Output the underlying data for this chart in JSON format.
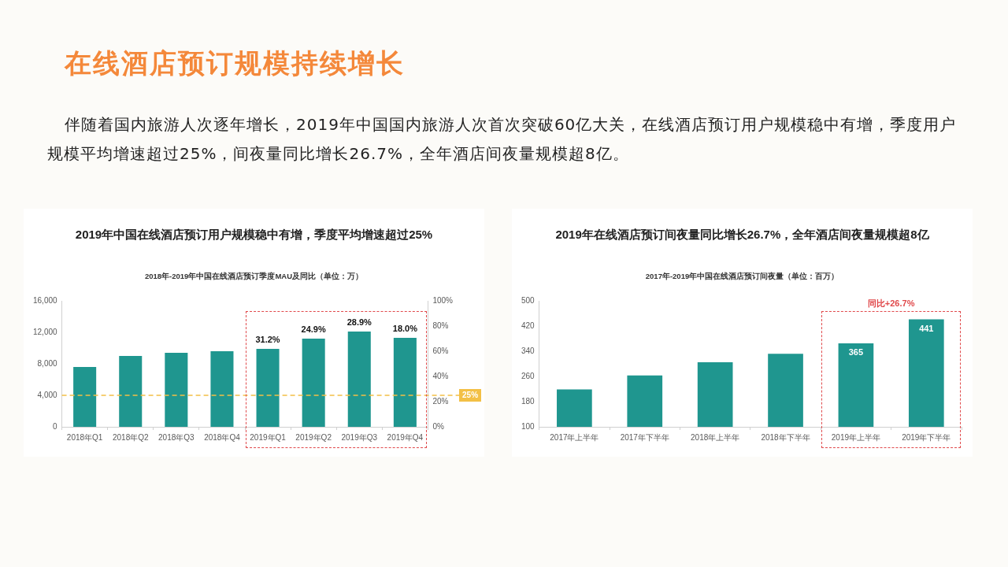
{
  "chart_data": [
    {
      "type": "other",
      "title": "在线酒店预订规模持续增长",
      "annotations": [
        "伴随着国内旅游人次逐年增长，2019年中国国内旅游人次首次突破60亿大关，在线酒店预订用户规模稳中有增，季度用户规模平均增速超过25%，间夜量同比增长26.7%，全年酒店间夜量规模超8亿。"
      ]
    },
    {
      "type": "bar",
      "title": "2019年中国在线酒店预订用户规模稳中有增，季度平均增速超过25%",
      "subtitle": "2018年-2019年中国在线酒店预订季度MAU及同比（单位：万）",
      "categories": [
        "2018年Q1",
        "2018年Q2",
        "2018年Q3",
        "2018年Q4",
        "2019年Q1",
        "2019年Q2",
        "2019年Q3",
        "2019年Q4"
      ],
      "values": [
        7600,
        9000,
        9400,
        9600,
        9900,
        11200,
        12100,
        11300
      ],
      "color": "#1f968f",
      "ylim": [
        0,
        16000
      ],
      "yticks": [
        0,
        {
          "value": 4000,
          "label": "4,000"
        },
        {
          "value": 8000,
          "label": "8,000"
        },
        {
          "value": 12000,
          "label": "12,000"
        },
        {
          "value": 16000,
          "label": "16,000"
        }
      ],
      "y2lim": [
        0,
        100
      ],
      "y2ticks": [
        {
          "value": 0,
          "label": "0%"
        },
        {
          "value": 20,
          "label": "20%"
        },
        {
          "value": 40,
          "label": "40%"
        },
        {
          "value": 60,
          "label": "60%"
        },
        {
          "value": 80,
          "label": "80%"
        },
        {
          "value": 100,
          "label": "100%"
        }
      ],
      "ref_lines": [
        {
          "axis": "y2",
          "value": 25,
          "label": "25%",
          "color": "#f3c046",
          "line_style": "dashed"
        }
      ],
      "annotations": [
        {
          "text": "31.2%",
          "x": "2019年Q1",
          "y": 9900
        },
        {
          "text": "24.9%",
          "x": "2019年Q2",
          "y": 11200
        },
        {
          "text": "28.9%",
          "x": "2019年Q3",
          "y": 12100
        },
        {
          "text": "18.0%",
          "x": "2019年Q4",
          "y": 11300
        }
      ]
    },
    {
      "type": "bar",
      "title": "2019年在线酒店预订间夜量同比增长26.7%，全年酒店间夜量规模超8亿",
      "subtitle": "2017年-2019年中国在线酒店预订间夜量（单位：百万）",
      "categories": [
        "2017年上半年",
        "2017年下半年",
        "2018年上半年",
        "2018年下半年",
        "2019年上半年",
        "2019年下半年"
      ],
      "values": [
        219,
        263,
        305,
        332,
        365,
        441
      ],
      "color": "#1f968f",
      "value_labels": [
        null,
        null,
        null,
        null,
        "365",
        "441"
      ],
      "ylim": [
        100,
        500
      ],
      "yticks": [
        100,
        180,
        260,
        340,
        420,
        500
      ],
      "annotations": [
        "同比+26.7%"
      ]
    }
  ]
}
